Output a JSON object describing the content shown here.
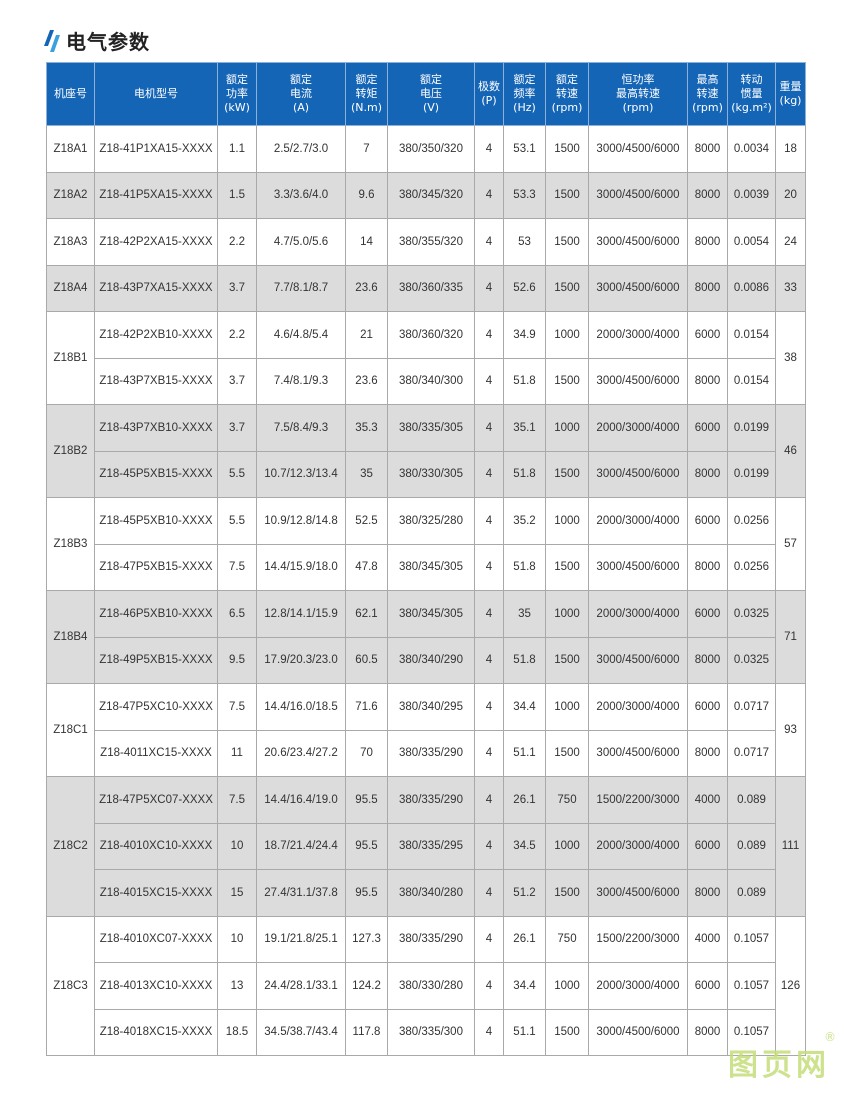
{
  "title": "电气参数",
  "accent_color": "#1565b7",
  "headers": [
    "机座号",
    "电机型号",
    "额定\n功率\n(kW)",
    "额定\n电流\n(A)",
    "额定\n转矩\n(N.m)",
    "额定\n电压\n(V)",
    "极数\n(P)",
    "额定\n频率\n(Hz)",
    "额定\n转速\n(rpm)",
    "恒功率\n最高转速\n(rpm)",
    "最高\n转速\n(rpm)",
    "转动\n惯量\n(kg.m²)",
    "重量\n(kg)"
  ],
  "groups": [
    {
      "frame": "Z18A1",
      "weight": "18",
      "rows": [
        [
          "Z18-41P1XA15-XXXX",
          "1.1",
          "2.5/2.7/3.0",
          "7",
          "380/350/320",
          "4",
          "53.1",
          "1500",
          "3000/4500/6000",
          "8000",
          "0.0034"
        ]
      ]
    },
    {
      "frame": "Z18A2",
      "weight": "20",
      "rows": [
        [
          "Z18-41P5XA15-XXXX",
          "1.5",
          "3.3/3.6/4.0",
          "9.6",
          "380/345/320",
          "4",
          "53.3",
          "1500",
          "3000/4500/6000",
          "8000",
          "0.0039"
        ]
      ]
    },
    {
      "frame": "Z18A3",
      "weight": "24",
      "rows": [
        [
          "Z18-42P2XA15-XXXX",
          "2.2",
          "4.7/5.0/5.6",
          "14",
          "380/355/320",
          "4",
          "53",
          "1500",
          "3000/4500/6000",
          "8000",
          "0.0054"
        ]
      ]
    },
    {
      "frame": "Z18A4",
      "weight": "33",
      "rows": [
        [
          "Z18-43P7XA15-XXXX",
          "3.7",
          "7.7/8.1/8.7",
          "23.6",
          "380/360/335",
          "4",
          "52.6",
          "1500",
          "3000/4500/6000",
          "8000",
          "0.0086"
        ]
      ]
    },
    {
      "frame": "Z18B1",
      "weight": "38",
      "rows": [
        [
          "Z18-42P2XB10-XXXX",
          "2.2",
          "4.6/4.8/5.4",
          "21",
          "380/360/320",
          "4",
          "34.9",
          "1000",
          "2000/3000/4000",
          "6000",
          "0.0154"
        ],
        [
          "Z18-43P7XB15-XXXX",
          "3.7",
          "7.4/8.1/9.3",
          "23.6",
          "380/340/300",
          "4",
          "51.8",
          "1500",
          "3000/4500/6000",
          "8000",
          "0.0154"
        ]
      ]
    },
    {
      "frame": "Z18B2",
      "weight": "46",
      "rows": [
        [
          "Z18-43P7XB10-XXXX",
          "3.7",
          "7.5/8.4/9.3",
          "35.3",
          "380/335/305",
          "4",
          "35.1",
          "1000",
          "2000/3000/4000",
          "6000",
          "0.0199"
        ],
        [
          "Z18-45P5XB15-XXXX",
          "5.5",
          "10.7/12.3/13.4",
          "35",
          "380/330/305",
          "4",
          "51.8",
          "1500",
          "3000/4500/6000",
          "8000",
          "0.0199"
        ]
      ]
    },
    {
      "frame": "Z18B3",
      "weight": "57",
      "rows": [
        [
          "Z18-45P5XB10-XXXX",
          "5.5",
          "10.9/12.8/14.8",
          "52.5",
          "380/325/280",
          "4",
          "35.2",
          "1000",
          "2000/3000/4000",
          "6000",
          "0.0256"
        ],
        [
          "Z18-47P5XB15-XXXX",
          "7.5",
          "14.4/15.9/18.0",
          "47.8",
          "380/345/305",
          "4",
          "51.8",
          "1500",
          "3000/4500/6000",
          "8000",
          "0.0256"
        ]
      ]
    },
    {
      "frame": "Z18B4",
      "weight": "71",
      "rows": [
        [
          "Z18-46P5XB10-XXXX",
          "6.5",
          "12.8/14.1/15.9",
          "62.1",
          "380/345/305",
          "4",
          "35",
          "1000",
          "2000/3000/4000",
          "6000",
          "0.0325"
        ],
        [
          "Z18-49P5XB15-XXXX",
          "9.5",
          "17.9/20.3/23.0",
          "60.5",
          "380/340/290",
          "4",
          "51.8",
          "1500",
          "3000/4500/6000",
          "8000",
          "0.0325"
        ]
      ]
    },
    {
      "frame": "Z18C1",
      "weight": "93",
      "rows": [
        [
          "Z18-47P5XC10-XXXX",
          "7.5",
          "14.4/16.0/18.5",
          "71.6",
          "380/340/295",
          "4",
          "34.4",
          "1000",
          "2000/3000/4000",
          "6000",
          "0.0717"
        ],
        [
          "Z18-4011XC15-XXXX",
          "11",
          "20.6/23.4/27.2",
          "70",
          "380/335/290",
          "4",
          "51.1",
          "1500",
          "3000/4500/6000",
          "8000",
          "0.0717"
        ]
      ]
    },
    {
      "frame": "Z18C2",
      "weight": "111",
      "rows": [
        [
          "Z18-47P5XC07-XXXX",
          "7.5",
          "14.4/16.4/19.0",
          "95.5",
          "380/335/290",
          "4",
          "26.1",
          "750",
          "1500/2200/3000",
          "4000",
          "0.089"
        ],
        [
          "Z18-4010XC10-XXXX",
          "10",
          "18.7/21.4/24.4",
          "95.5",
          "380/335/295",
          "4",
          "34.5",
          "1000",
          "2000/3000/4000",
          "6000",
          "0.089"
        ],
        [
          "Z18-4015XC15-XXXX",
          "15",
          "27.4/31.1/37.8",
          "95.5",
          "380/340/280",
          "4",
          "51.2",
          "1500",
          "3000/4500/6000",
          "8000",
          "0.089"
        ]
      ]
    },
    {
      "frame": "Z18C3",
      "weight": "126",
      "rows": [
        [
          "Z18-4010XC07-XXXX",
          "10",
          "19.1/21.8/25.1",
          "127.3",
          "380/335/290",
          "4",
          "26.1",
          "750",
          "1500/2200/3000",
          "4000",
          "0.1057"
        ],
        [
          "Z18-4013XC10-XXXX",
          "13",
          "24.4/28.1/33.1",
          "124.2",
          "380/330/280",
          "4",
          "34.4",
          "1000",
          "2000/3000/4000",
          "6000",
          "0.1057"
        ],
        [
          "Z18-4018XC15-XXXX",
          "18.5",
          "34.5/38.7/43.4",
          "117.8",
          "380/335/300",
          "4",
          "51.1",
          "1500",
          "3000/4500/6000",
          "8000",
          "0.1057"
        ]
      ]
    }
  ],
  "watermark": "图页网",
  "watermark_mark": "®"
}
